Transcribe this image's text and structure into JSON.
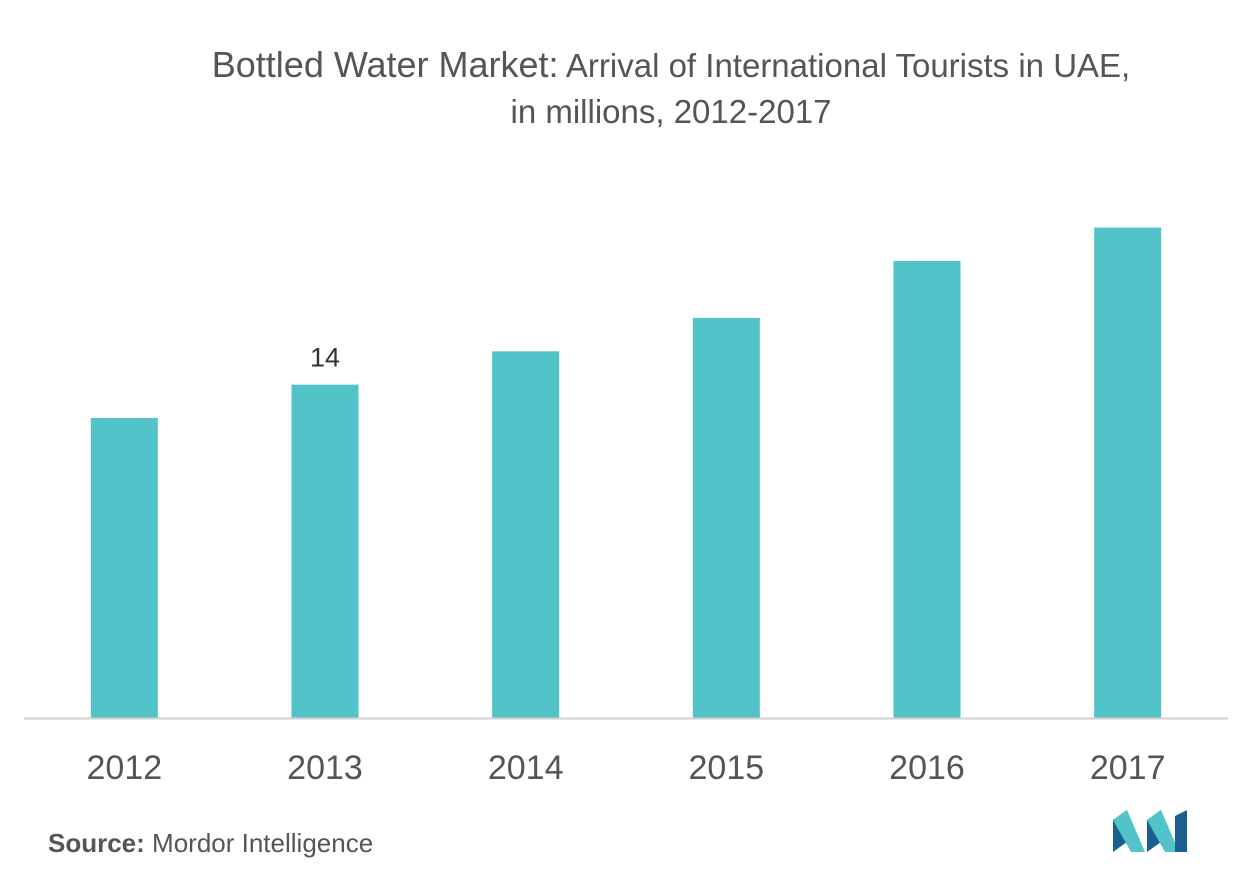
{
  "title": {
    "main": "Bottled Water Market:",
    "rest_line1": "Arrival of International Tourists in UAE,",
    "line2": "in millions, 2012-2017"
  },
  "chart_data": {
    "type": "bar",
    "categories": [
      "2012",
      "2013",
      "2014",
      "2015",
      "2016",
      "2017"
    ],
    "values": [
      12.6,
      14,
      15.4,
      16.8,
      19.2,
      20.6
    ],
    "data_labels": [
      null,
      "14",
      null,
      null,
      null,
      null
    ],
    "ylim": [
      0,
      21
    ],
    "grid": false,
    "xlabel": "",
    "ylabel": "",
    "colors": {
      "bar": "#52c3c9",
      "axis": "#d0d0d0",
      "text": "#555555"
    }
  },
  "source": {
    "label": "Source:",
    "text": "Mordor Intelligence"
  },
  "logo": {
    "icon": "mordor-intelligence-logo-icon",
    "colors": [
      "#1a5f8f",
      "#52c3c9"
    ]
  }
}
